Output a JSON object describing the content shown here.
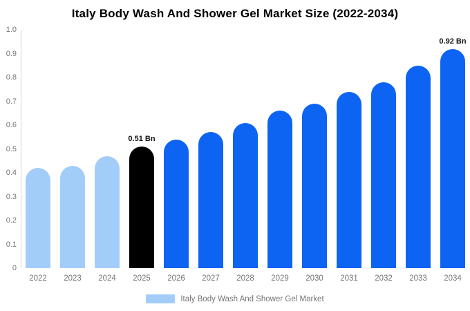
{
  "title": "Italy Body Wash And Shower Gel Market Size (2022-2034)",
  "chart_data": {
    "type": "bar",
    "title": "Italy Body Wash And Shower Gel Market Size (2022-2034)",
    "categories": [
      "2022",
      "2023",
      "2024",
      "2025",
      "2026",
      "2027",
      "2028",
      "2029",
      "2030",
      "2031",
      "2032",
      "2033",
      "2034"
    ],
    "values": [
      0.42,
      0.43,
      0.47,
      0.51,
      0.54,
      0.57,
      0.61,
      0.66,
      0.69,
      0.74,
      0.78,
      0.85,
      0.92
    ],
    "unit": "Bn",
    "xlabel": "",
    "ylabel": "",
    "ylim": [
      0,
      1.0
    ],
    "ytick_labels": [
      "0",
      "0.1",
      "0.2",
      "0.3",
      "0.4",
      "0.5",
      "0.6",
      "0.7",
      "0.8",
      "0.9",
      "1.0"
    ],
    "grid": false,
    "legend_position": "bottom-center",
    "annotations": [
      {
        "category": "2025",
        "label": "0.51 Bn"
      },
      {
        "category": "2034",
        "label": "0.92 Bn"
      }
    ],
    "bar_colors": [
      "#A3CDF9",
      "#A3CDF9",
      "#A3CDF9",
      "#000000",
      "#0D64F2",
      "#0D64F2",
      "#0D64F2",
      "#0D64F2",
      "#0D64F2",
      "#0D64F2",
      "#0D64F2",
      "#0D64F2",
      "#0D64F2"
    ],
    "colors": {
      "historical": "#A3CDF9",
      "base_year": "#000000",
      "forecast": "#0D64F2",
      "axis_line": "#d4d4d4",
      "tick_text": "#757575",
      "annotation_text": "#111111"
    },
    "legend": {
      "label": "Italy Body Wash And Shower Gel Market",
      "swatch_color": "#A3CDF9"
    }
  }
}
